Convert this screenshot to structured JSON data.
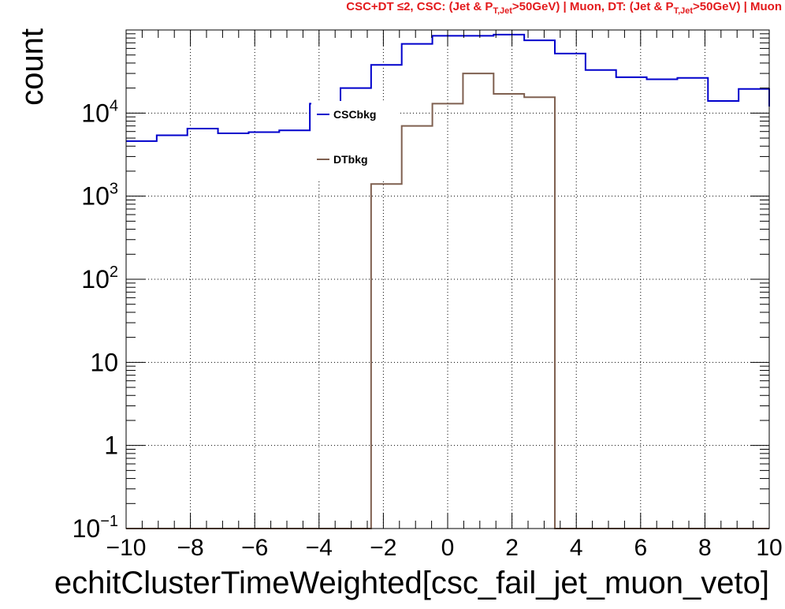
{
  "title_text": "CSC+DT ≤2, CSC: (Jet & P T,Jet>50GeV) | Muon, DT: (Jet & P T,Jet>50GeV) | Muon",
  "title_color": "#e31a1c",
  "chart_data": {
    "type": "line",
    "drawstyle": "step-histogram",
    "xlabel": "echitClusterTimeWeighted[csc_fail_jet_muon_veto]",
    "ylabel": "count",
    "xlim": [
      -10,
      10
    ],
    "ylim": [
      0.1,
      100000
    ],
    "yscale": "log",
    "grid": true,
    "legend_placement": "upper-center",
    "x_tick_labels": [
      "−10",
      "−8",
      "−6",
      "−4",
      "−2",
      "0",
      "2",
      "4",
      "6",
      "8",
      "10"
    ],
    "y_tick_labels": [
      {
        "value": 0.1,
        "base": "10",
        "exp": "−1"
      },
      {
        "value": 1,
        "base": "1",
        "exp": ""
      },
      {
        "value": 10,
        "base": "10",
        "exp": ""
      },
      {
        "value": 100,
        "base": "10",
        "exp": "2"
      },
      {
        "value": 1000,
        "base": "10",
        "exp": "3"
      },
      {
        "value": 10000,
        "base": "10",
        "exp": "4"
      }
    ],
    "bin_edges": [
      -10,
      -9.048,
      -8.095,
      -7.143,
      -6.19,
      -5.238,
      -4.286,
      -3.333,
      -2.381,
      -1.429,
      -0.476,
      0.476,
      1.429,
      2.381,
      3.333,
      4.286,
      5.238,
      6.19,
      7.143,
      8.095,
      9.048,
      10
    ],
    "series": [
      {
        "name": "CSCbkg",
        "color": "#0000cc",
        "values": [
          4600,
          5400,
          6500,
          5700,
          5900,
          6200,
          13000,
          20000,
          38000,
          68000,
          85000,
          85000,
          88000,
          75000,
          52000,
          33000,
          27000,
          25500,
          26500,
          14000,
          19500,
          12000
        ]
      },
      {
        "name": "DTbkg",
        "color": "#7f6050",
        "values": [
          0.1,
          0.1,
          0.1,
          0.1,
          0.1,
          0.1,
          0.1,
          0.1,
          1400,
          7000,
          13000,
          30000,
          17000,
          15500,
          0.1,
          0.1,
          0.1,
          0.1,
          0.1,
          0.1,
          0.1,
          0.1
        ]
      }
    ]
  }
}
